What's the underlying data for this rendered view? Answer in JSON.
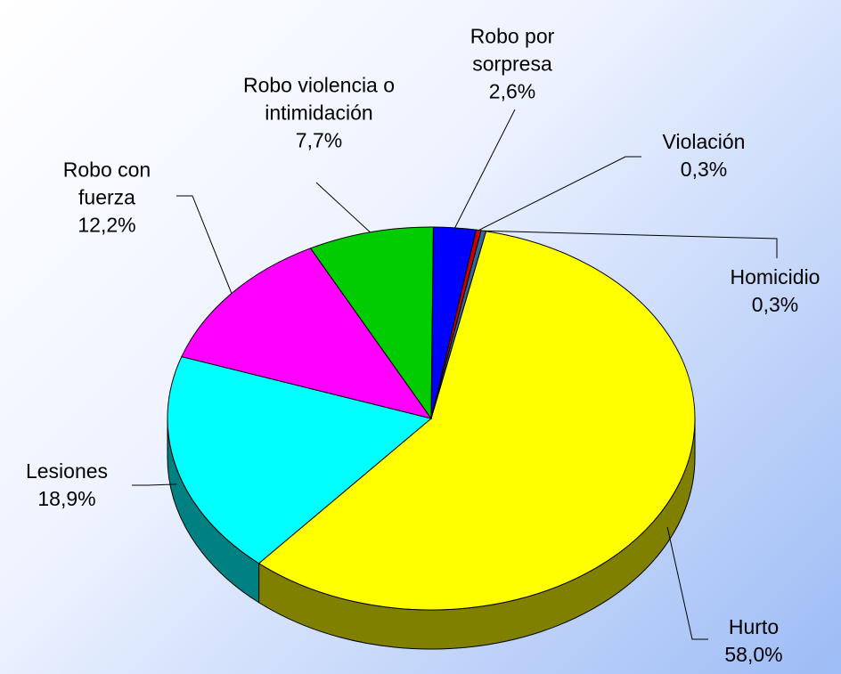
{
  "chart_data": {
    "type": "pie3d",
    "categories": [
      "Hurto",
      "Lesiones",
      "Robo con fuerza",
      "Robo violencia o intimidación",
      "Robo por sorpresa",
      "Violación",
      "Homicidio"
    ],
    "values": [
      58.0,
      18.9,
      12.2,
      7.7,
      2.6,
      0.3,
      0.3
    ],
    "value_labels": [
      "58,0%",
      "18,9%",
      "12,2%",
      "7,7%",
      "2,6%",
      "0,3%",
      "0,3%"
    ],
    "colors": [
      "#ffff00",
      "#00ffff",
      "#ff00ff",
      "#00cc00",
      "#0000ff",
      "#cc0000",
      "#336699"
    ]
  }
}
